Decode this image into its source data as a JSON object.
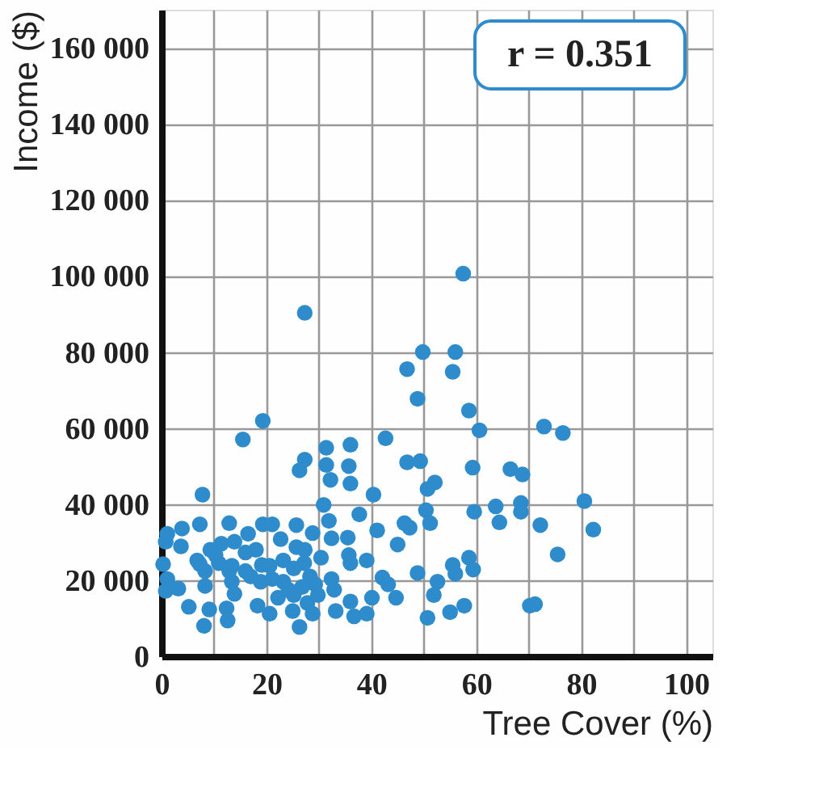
{
  "chart_data": {
    "type": "scatter",
    "xlabel": "Tree Cover (%)",
    "ylabel": "Income ($)",
    "marker": "circle",
    "grid": true,
    "xlim": [
      0,
      105
    ],
    "ylim": [
      0,
      170000
    ],
    "xticks": [
      0,
      {
        "value": 10,
        "label": null
      },
      20,
      {
        "value": 30,
        "label": null
      },
      40,
      {
        "value": 50,
        "label": null
      },
      60,
      {
        "value": 70,
        "label": null
      },
      80,
      {
        "value": 90,
        "label": null
      },
      100
    ],
    "yticks": [
      {
        "value": 0,
        "label": "0"
      },
      {
        "value": 20000,
        "label": "20 000"
      },
      {
        "value": 40000,
        "label": "40 000"
      },
      {
        "value": 60000,
        "label": "60 000"
      },
      {
        "value": 80000,
        "label": "80 000"
      },
      {
        "value": 100000,
        "label": "100 000"
      },
      {
        "value": 120000,
        "label": "120 000"
      },
      {
        "value": 140000,
        "label": "140 000"
      },
      {
        "value": 160000,
        "label": "160 000"
      }
    ],
    "annotations": [
      "r = 0.351"
    ],
    "series": [
      {
        "color": "#2e8bcc",
        "x": [
          27.3,
          57.5,
          49.8,
          56.0,
          46.8,
          55.5,
          48.8,
          58.6,
          60.6,
          72.9,
          76.5,
          19.3,
          15.5,
          42.7,
          31.4,
          36.0,
          27.3,
          26.3,
          31.4,
          35.7,
          32.2,
          36.0,
          46.8,
          49.3,
          59.3,
          66.5,
          68.8,
          52.1,
          50.7,
          7.8,
          40.4,
          30.9,
          50.4,
          63.7,
          68.5,
          68.5,
          80.6,
          59.6,
          37.7,
          31.9,
          46.3,
          47.3,
          51.2,
          64.4,
          72.2,
          82.3,
          41.1,
          7.3,
          12.9,
          19.3,
          21.1,
          25.7,
          28.8,
          32.4,
          35.5,
          1.1,
          3.9,
          0.8,
          3.7,
          16.5,
          13.9,
          11.4,
          9.3,
          18.0,
          22.7,
          25.7,
          45.0,
          75.5,
          35.7,
          30.4,
          27.2,
          23.2,
          39.1,
          36.0,
          0.3,
          7.3,
          10.9,
          13.4,
          19.1,
          16.0,
          8.3,
          55.5,
          58.6,
          59.4,
          56.0,
          48.8,
          42.1,
          43.2,
          52.6,
          51.9,
          44.7,
          40.1,
          1.1,
          0.8,
          3.2,
          8.3,
          13.4,
          13.9,
          17.0,
          18.9,
          21.1,
          23.2,
          29.3,
          32.4,
          29.8,
          32.9,
          22.2,
          25.2,
          27.8,
          5.2,
          9.1,
          12.4,
          12.6,
          8.1,
          18.3,
          20.6,
          25.0,
          26.3,
          28.8,
          33.2,
          36.0,
          36.7,
          39.1,
          50.7,
          55.0,
          57.7,
          70.2,
          71.2,
          16.0,
          20.6,
          25.2,
          28.3,
          24.2,
          26.8,
          6.8,
          10.3,
          12.9,
          27.3
        ],
        "values": [
          90300,
          100600,
          80000,
          80000,
          75500,
          74800,
          67700,
          64600,
          59400,
          60400,
          58700,
          61900,
          57000,
          57300,
          54800,
          55600,
          51700,
          48900,
          50300,
          50000,
          46400,
          45400,
          51000,
          51300,
          49600,
          49200,
          47800,
          45700,
          44000,
          42500,
          42500,
          39800,
          38400,
          39400,
          40300,
          38000,
          40800,
          38000,
          37300,
          35600,
          35000,
          33800,
          35000,
          35200,
          34500,
          33300,
          33100,
          34700,
          35000,
          34700,
          34700,
          34500,
          32400,
          31000,
          31200,
          32200,
          33600,
          30100,
          28900,
          32200,
          30100,
          29600,
          28000,
          28000,
          30800,
          28700,
          29400,
          26800,
          26600,
          25900,
          24500,
          25200,
          25200,
          24500,
          24200,
          24200,
          24500,
          23800,
          24000,
          22400,
          22400,
          24000,
          25900,
          22800,
          21700,
          21900,
          20700,
          18900,
          19600,
          16100,
          15400,
          15400,
          20300,
          17200,
          17800,
          18500,
          19600,
          16400,
          21000,
          19600,
          20300,
          19600,
          18900,
          20300,
          16100,
          17500,
          15400,
          16100,
          14000,
          13000,
          12300,
          12600,
          9400,
          8000,
          13300,
          11200,
          11900,
          7700,
          11200,
          11900,
          14400,
          10500,
          11200,
          10100,
          11600,
          13300,
          13300,
          13700,
          27300,
          23800,
          23100,
          21000,
          17500,
          18200,
          25200,
          26600,
          22400,
          28000
        ]
      }
    ]
  }
}
